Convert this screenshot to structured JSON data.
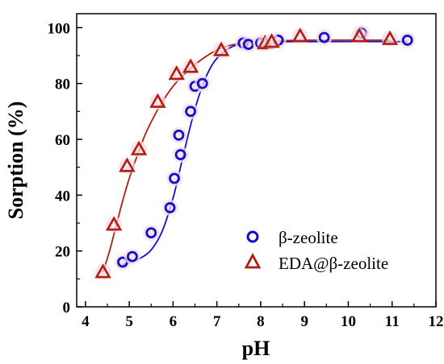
{
  "chart_data": {
    "type": "scatter",
    "xlabel": "pH",
    "ylabel": "Sorption (%)",
    "xlim": [
      3.8,
      12
    ],
    "ylim": [
      0,
      105
    ],
    "xticks": [
      4,
      5,
      6,
      7,
      8,
      9,
      10,
      11,
      12
    ],
    "yticks": [
      0,
      20,
      40,
      60,
      80,
      100
    ],
    "grid": false,
    "legend_position": "bottom-right",
    "series": [
      {
        "name": "β-zeolite",
        "marker": "circle",
        "color": "#1010cc",
        "points": [
          [
            4.85,
            16.0
          ],
          [
            5.07,
            18.0
          ],
          [
            5.5,
            26.5
          ],
          [
            5.93,
            35.5
          ],
          [
            6.03,
            46.0
          ],
          [
            6.13,
            61.5
          ],
          [
            6.17,
            54.5
          ],
          [
            6.4,
            70.0
          ],
          [
            6.5,
            79.0
          ],
          [
            6.67,
            80.0
          ],
          [
            7.6,
            94.5
          ],
          [
            7.72,
            94.0
          ],
          [
            8.0,
            94.5
          ],
          [
            8.4,
            95.5
          ],
          [
            9.45,
            96.5
          ],
          [
            10.3,
            98.0
          ],
          [
            11.35,
            95.5
          ]
        ],
        "fit_curve": [
          [
            4.85,
            15.2
          ],
          [
            5.0,
            15.9
          ],
          [
            5.25,
            17.4
          ],
          [
            5.5,
            20.4
          ],
          [
            5.75,
            27.0
          ],
          [
            6.0,
            39.0
          ],
          [
            6.2,
            52.0
          ],
          [
            6.4,
            65.0
          ],
          [
            6.6,
            76.0
          ],
          [
            6.8,
            84.0
          ],
          [
            7.0,
            89.0
          ],
          [
            7.3,
            92.8
          ],
          [
            7.6,
            94.3
          ],
          [
            8.0,
            94.9
          ],
          [
            9.0,
            95.0
          ],
          [
            11.35,
            95.0
          ]
        ]
      },
      {
        "name": "EDA@β-zeolite",
        "marker": "triangle",
        "color": "#b01e12",
        "points": [
          [
            4.4,
            12.5
          ],
          [
            4.65,
            29.5
          ],
          [
            4.95,
            50.5
          ],
          [
            5.22,
            56.5
          ],
          [
            5.65,
            73.5
          ],
          [
            6.08,
            83.5
          ],
          [
            6.4,
            86.0
          ],
          [
            7.1,
            92.0
          ],
          [
            8.1,
            94.5
          ],
          [
            8.25,
            95.0
          ],
          [
            8.9,
            97.0
          ],
          [
            10.25,
            97.0
          ],
          [
            10.95,
            96.0
          ]
        ],
        "fit_curve": [
          [
            4.4,
            12.5
          ],
          [
            4.55,
            20.0
          ],
          [
            4.7,
            29.0
          ],
          [
            4.85,
            38.0
          ],
          [
            5.0,
            46.0
          ],
          [
            5.2,
            55.0
          ],
          [
            5.4,
            63.0
          ],
          [
            5.7,
            72.0
          ],
          [
            6.0,
            79.0
          ],
          [
            6.3,
            84.0
          ],
          [
            6.6,
            88.0
          ],
          [
            7.0,
            92.0
          ],
          [
            7.4,
            94.0
          ],
          [
            8.0,
            95.0
          ],
          [
            9.0,
            95.5
          ],
          [
            10.95,
            95.5
          ]
        ]
      }
    ]
  }
}
